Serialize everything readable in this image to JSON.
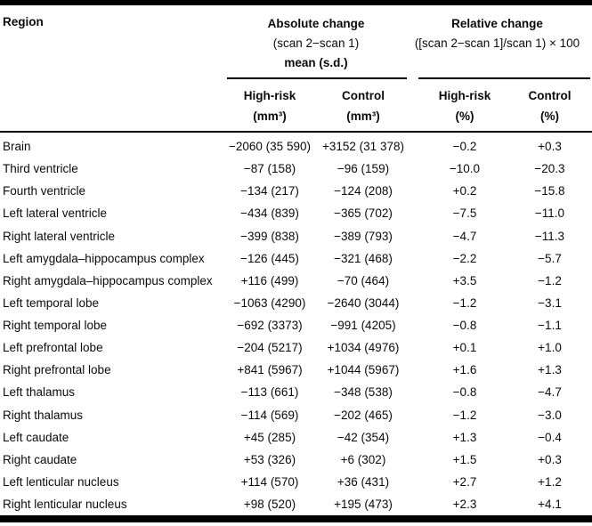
{
  "page": {
    "background": "#ffffff",
    "text_color": "#0a0a0a",
    "rule_color": "#000000"
  },
  "table": {
    "region_header": "Region",
    "groups": [
      {
        "title": "Absolute change",
        "subtitle": "(scan 2−scan 1)",
        "subtitle2": "mean (s.d.)",
        "columns": [
          {
            "label": "High-risk",
            "unit": "(mm³)"
          },
          {
            "label": "Control",
            "unit": "(mm³)"
          }
        ]
      },
      {
        "title": "Relative change",
        "subtitle": "([scan 2−scan 1]/scan 1) × 100",
        "subtitle2": "",
        "columns": [
          {
            "label": "High-risk",
            "unit": "(%)"
          },
          {
            "label": "Control",
            "unit": "(%)"
          }
        ]
      }
    ],
    "rows": [
      {
        "region": "Brain",
        "abs_high_risk": "−2060 (35 590)",
        "abs_control": "+3152 (31 378)",
        "rel_high_risk": "−0.2",
        "rel_control": "+0.3"
      },
      {
        "region": "Third ventricle",
        "abs_high_risk": "−87 (158)",
        "abs_control": "−96 (159)",
        "rel_high_risk": "−10.0",
        "rel_control": "−20.3"
      },
      {
        "region": "Fourth ventricle",
        "abs_high_risk": "−134 (217)",
        "abs_control": "−124 (208)",
        "rel_high_risk": "+0.2",
        "rel_control": "−15.8"
      },
      {
        "region": "Left lateral ventricle",
        "abs_high_risk": "−434 (839)",
        "abs_control": "−365 (702)",
        "rel_high_risk": "−7.5",
        "rel_control": "−11.0"
      },
      {
        "region": "Right lateral ventricle",
        "abs_high_risk": "−399 (838)",
        "abs_control": "−389 (793)",
        "rel_high_risk": "−4.7",
        "rel_control": "−11.3"
      },
      {
        "region": "Left amygdala–hippocampus complex",
        "abs_high_risk": "−126 (445)",
        "abs_control": "−321 (468)",
        "rel_high_risk": "−2.2",
        "rel_control": "−5.7"
      },
      {
        "region": "Right amygdala–hippocampus complex",
        "abs_high_risk": "+116 (499)",
        "abs_control": "−70 (464)",
        "rel_high_risk": "+3.5",
        "rel_control": "−1.2"
      },
      {
        "region": "Left temporal lobe",
        "abs_high_risk": "−1063 (4290)",
        "abs_control": "−2640 (3044)",
        "rel_high_risk": "−1.2",
        "rel_control": "−3.1"
      },
      {
        "region": "Right temporal lobe",
        "abs_high_risk": "−692 (3373)",
        "abs_control": "−991 (4205)",
        "rel_high_risk": "−0.8",
        "rel_control": "−1.1"
      },
      {
        "region": "Left prefrontal lobe",
        "abs_high_risk": "−204 (5217)",
        "abs_control": "+1034 (4976)",
        "rel_high_risk": "+0.1",
        "rel_control": "+1.0"
      },
      {
        "region": "Right prefrontal lobe",
        "abs_high_risk": "+841 (5967)",
        "abs_control": "+1044 (5967)",
        "rel_high_risk": "+1.6",
        "rel_control": "+1.3"
      },
      {
        "region": "Left thalamus",
        "abs_high_risk": "−113 (661)",
        "abs_control": "−348 (538)",
        "rel_high_risk": "−0.8",
        "rel_control": "−4.7"
      },
      {
        "region": "Right thalamus",
        "abs_high_risk": "−114 (569)",
        "abs_control": "−202 (465)",
        "rel_high_risk": "−1.2",
        "rel_control": "−3.0"
      },
      {
        "region": "Left caudate",
        "abs_high_risk": "+45 (285)",
        "abs_control": "−42 (354)",
        "rel_high_risk": "+1.3",
        "rel_control": "−0.4"
      },
      {
        "region": "Right caudate",
        "abs_high_risk": "+53 (326)",
        "abs_control": "+6 (302)",
        "rel_high_risk": "+1.5",
        "rel_control": "+0.3"
      },
      {
        "region": "Left lenticular nucleus",
        "abs_high_risk": "+114 (570)",
        "abs_control": "+36 (431)",
        "rel_high_risk": "+2.7",
        "rel_control": "+1.2"
      },
      {
        "region": "Right lenticular nucleus",
        "abs_high_risk": "+98 (520)",
        "abs_control": "+195 (473)",
        "rel_high_risk": "+2.3",
        "rel_control": "+4.1"
      }
    ]
  }
}
